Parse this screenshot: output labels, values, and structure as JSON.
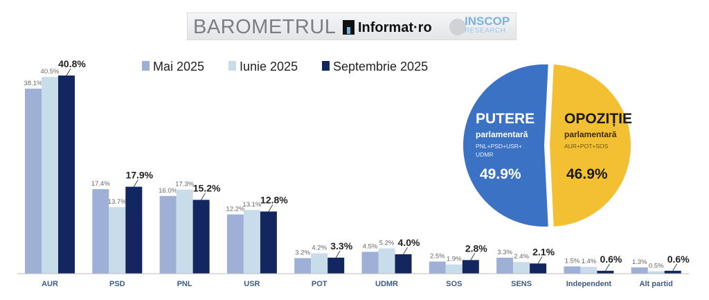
{
  "banner": {
    "title": "BAROMETRUL",
    "brand1": "Informat·ro",
    "brand2": "INSCOP",
    "brand2_sub": "RESEARCH"
  },
  "chart_data": [
    {
      "type": "bar",
      "title": "",
      "categories": [
        "AUR",
        "PSD",
        "PNL",
        "USR",
        "POT",
        "UDMR",
        "SOS",
        "SENS",
        "Independent",
        "Alt partid"
      ],
      "series": [
        {
          "name": "Mai 2025",
          "color": "#9fb0d6",
          "values": [
            38.1,
            17.4,
            16.0,
            12.2,
            3.2,
            4.5,
            2.5,
            3.3,
            1.5,
            1.3
          ]
        },
        {
          "name": "Iunie 2025",
          "color": "#c9dcea",
          "values": [
            40.5,
            13.7,
            17.3,
            13.1,
            4.2,
            5.2,
            1.9,
            2.4,
            1.4,
            0.5
          ]
        },
        {
          "name": "Septembrie 2025",
          "color": "#142660",
          "values": [
            40.8,
            17.9,
            15.2,
            12.8,
            3.3,
            4.0,
            2.8,
            2.1,
            0.6,
            0.6
          ]
        }
      ],
      "ylim": [
        0,
        42
      ],
      "legend": "top",
      "grid": false
    },
    {
      "type": "pie",
      "slices": [
        {
          "title": "PUTERE",
          "subtitle": "parlamentară",
          "detail1": "PNL+PSD+USR+",
          "detail2": "UDMR",
          "value": 49.9,
          "label": "49.9%",
          "color": "#3b72c4"
        },
        {
          "title": "OPOZIȚIE",
          "subtitle": "parlamentară",
          "detail1": "AUR+POT+SOS",
          "detail2": "",
          "value": 46.9,
          "label": "46.9%",
          "color": "#f2c032"
        }
      ]
    }
  ]
}
